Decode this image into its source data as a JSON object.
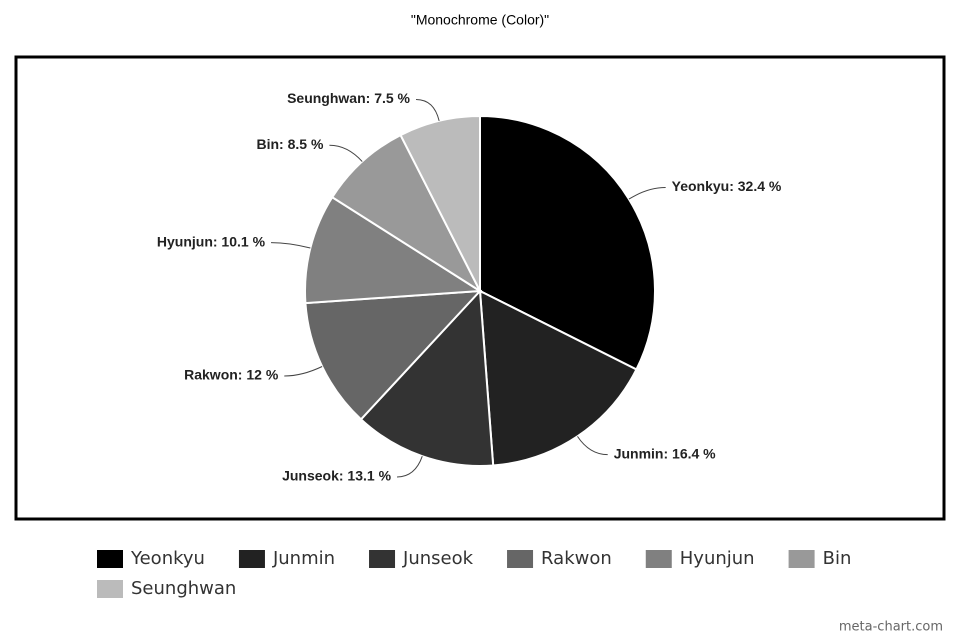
{
  "chart_data": {
    "type": "pie",
    "title": "\"Monochrome (Color)\"",
    "categories": [
      "Yeonkyu",
      "Junmin",
      "Junseok",
      "Rakwon",
      "Hyunjun",
      "Bin",
      "Seunghwan"
    ],
    "values": [
      32.4,
      16.4,
      13.1,
      12,
      10.1,
      8.5,
      7.5
    ],
    "value_labels": [
      "Yeonkyu: 32.4 %",
      "Junmin: 16.4 %",
      "Junseok: 13.1 %",
      "Rakwon: 12 %",
      "Hyunjun: 10.1 %",
      "Bin: 8.5 %",
      "Seunghwan: 7.5 %"
    ],
    "colors": [
      "#000000",
      "#222222",
      "#333333",
      "#666666",
      "#808080",
      "#999999",
      "#bbbbbb"
    ],
    "watermark": "meta-chart.com"
  }
}
